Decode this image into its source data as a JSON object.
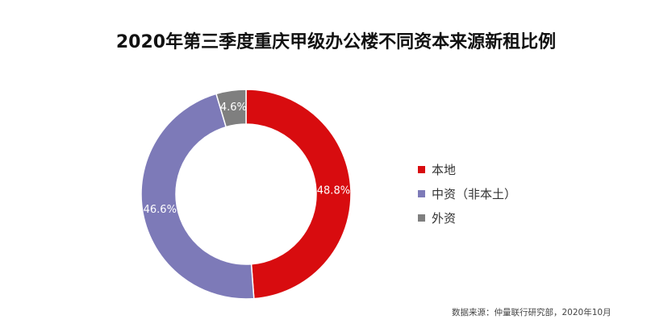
{
  "chart_data": {
    "type": "pie",
    "title": "2020年第三季度重庆甲级办公楼不同资本来源新租比例",
    "series": [
      {
        "name": "本地",
        "value": 48.8,
        "label": "48.8%",
        "color": "#D80C0F"
      },
      {
        "name": "中资（非本土）",
        "value": 46.6,
        "label": "46.6%",
        "color": "#7D7AB8"
      },
      {
        "name": "外资",
        "value": 4.6,
        "label": "4.6%",
        "color": "#7F7F7F"
      }
    ],
    "legend_position": "right"
  },
  "source_note": "数据来源：仲量联行研究部，2020年10月"
}
